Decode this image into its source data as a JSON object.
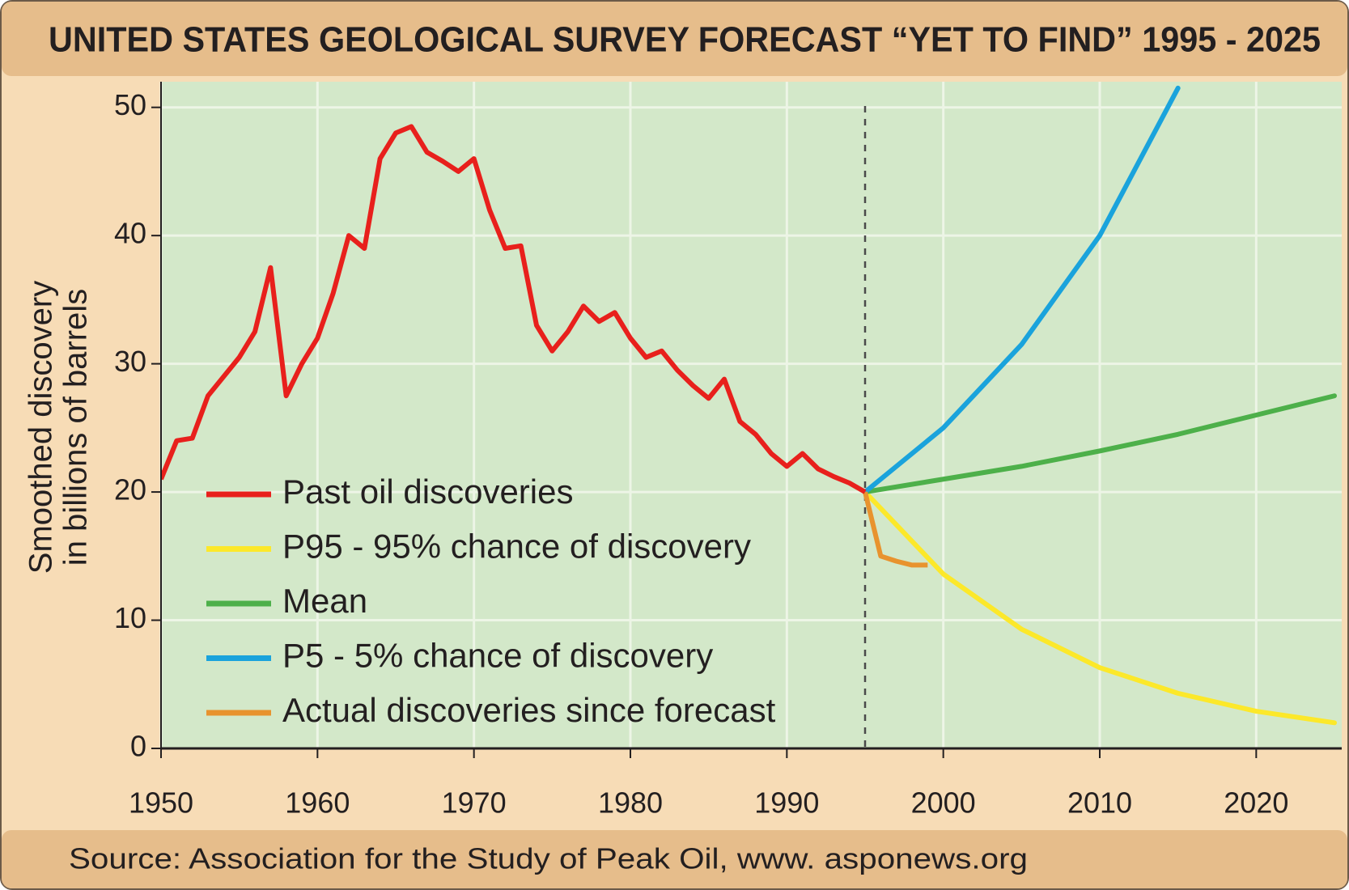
{
  "chart_data": {
    "type": "line",
    "title": "UNITED STATES GEOLOGICAL SURVEY FORECAST “YET TO FIND” 1995 - 2025",
    "ylabel": [
      "Smoothed discovery",
      "in billions of barrels"
    ],
    "source": "Source: Association for the Study of Peak Oil, www. asponews.org",
    "xlim": [
      1950,
      2025
    ],
    "ylim": [
      0,
      52
    ],
    "xticks": [
      1950,
      1960,
      1970,
      1980,
      1990,
      2000,
      2010,
      2020
    ],
    "yticks": [
      0,
      10,
      20,
      30,
      40,
      50
    ],
    "grid": true,
    "legend": "lower left",
    "series": [
      {
        "name": "Past oil discoveries",
        "color": "#e8201c",
        "x": [
          1950,
          1951,
          1952,
          1953,
          1954,
          1955,
          1956,
          1957,
          1958,
          1959,
          1960,
          1961,
          1962,
          1963,
          1964,
          1965,
          1966,
          1967,
          1968,
          1969,
          1970,
          1971,
          1972,
          1973,
          1974,
          1975,
          1976,
          1977,
          1978,
          1979,
          1980,
          1981,
          1982,
          1983,
          1984,
          1985,
          1986,
          1987,
          1988,
          1989,
          1990,
          1991,
          1992,
          1993,
          1994,
          1995
        ],
        "values": [
          21,
          24,
          24.2,
          27.5,
          29,
          30.5,
          32.5,
          37.5,
          27.5,
          30,
          32,
          35.5,
          40,
          39,
          46,
          48,
          48.5,
          46.5,
          45.8,
          45,
          46,
          42,
          39,
          39.2,
          33,
          31,
          32.5,
          34.5,
          33.3,
          34,
          32,
          30.5,
          31,
          29.5,
          28.3,
          27.3,
          28.8,
          25.5,
          24.5,
          23,
          22,
          23,
          21.8,
          21.2,
          20.7,
          20
        ]
      },
      {
        "name": "P95 - 95% chance of discovery",
        "color": "#fce82a",
        "x": [
          1995,
          2000,
          2005,
          2010,
          2015,
          2020,
          2025
        ],
        "values": [
          20,
          13.6,
          9.3,
          6.3,
          4.3,
          2.9,
          2
        ]
      },
      {
        "name": "Mean",
        "color": "#4db04a",
        "x": [
          1995,
          2000,
          2005,
          2010,
          2015,
          2020,
          2025
        ],
        "values": [
          20,
          21,
          22,
          23.2,
          24.5,
          26,
          27.5
        ]
      },
      {
        "name": "P5 - 5% chance of discovery",
        "color": "#1aa3dc",
        "x": [
          1995,
          2000,
          2005,
          2010,
          2015
        ],
        "values": [
          20,
          25,
          31.5,
          40,
          51.5
        ]
      },
      {
        "name": "Actual discoveries since forecast",
        "color": "#e8932e",
        "x": [
          1995,
          1996,
          1997,
          1998,
          1999
        ],
        "values": [
          20,
          15,
          14.6,
          14.3,
          14.3
        ]
      }
    ]
  }
}
